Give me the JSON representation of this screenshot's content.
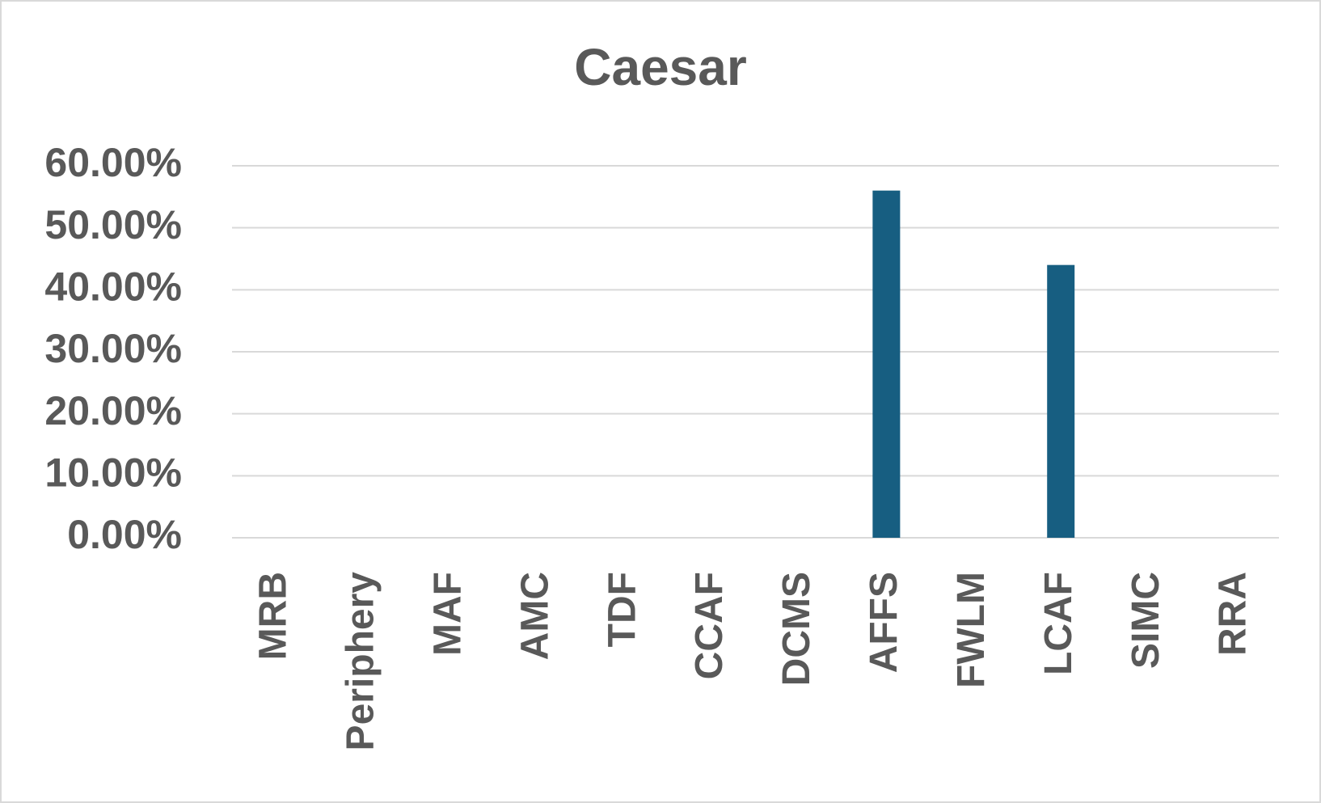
{
  "chart_data": {
    "type": "bar",
    "title": "Caesar",
    "categories": [
      "MRB",
      "Periphery",
      "MAF",
      "AMC",
      "TDF",
      "CCAF",
      "DCMS",
      "AFFS",
      "FWLM",
      "LCAF",
      "SIMC",
      "RRA"
    ],
    "values": [
      0,
      0,
      0,
      0,
      0,
      0,
      0,
      56,
      0,
      44,
      0,
      0
    ],
    "color": "#175e81",
    "ylim": [
      0,
      60
    ],
    "yticks": [
      {
        "value": 0,
        "label": "0.00%"
      },
      {
        "value": 10,
        "label": "10.00%"
      },
      {
        "value": 20,
        "label": "20.00%"
      },
      {
        "value": 30,
        "label": "30.00%"
      },
      {
        "value": 40,
        "label": "40.00%"
      },
      {
        "value": 50,
        "label": "50.00%"
      },
      {
        "value": 60,
        "label": "60.00%"
      }
    ],
    "grid": true
  }
}
